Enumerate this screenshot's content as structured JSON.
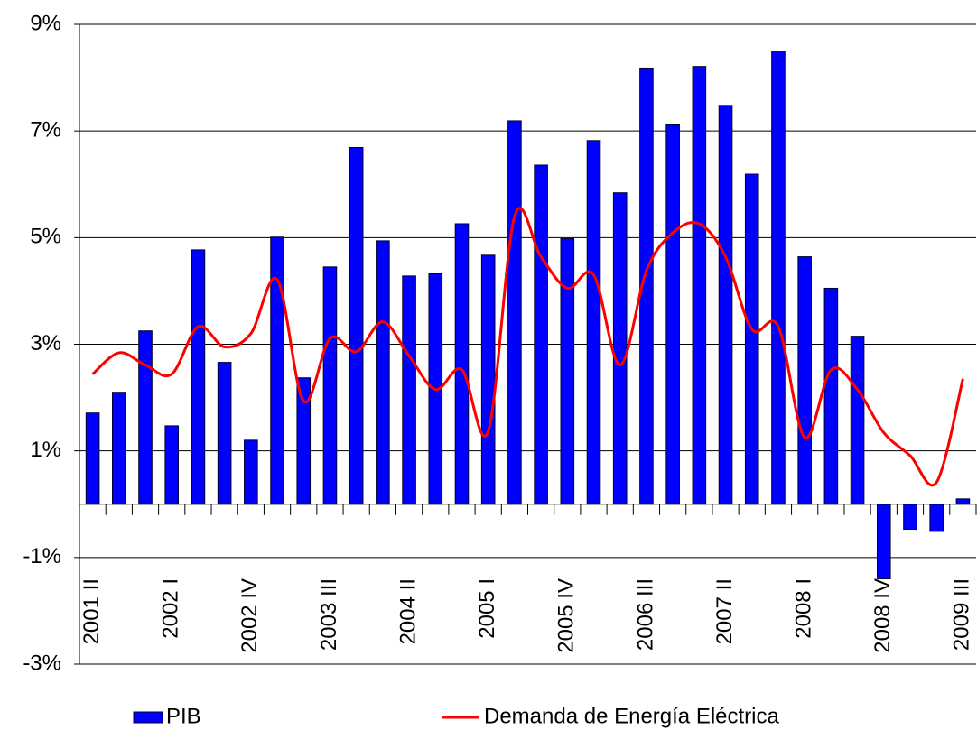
{
  "chart_data": {
    "type": "bar",
    "categories": [
      "2001 II",
      null,
      null,
      "2002 I",
      null,
      null,
      "2002 IV",
      null,
      null,
      "2003 III",
      null,
      null,
      "2004 II",
      null,
      null,
      "2005 I",
      null,
      null,
      "2005 IV",
      null,
      null,
      "2006 III",
      null,
      null,
      "2007 II",
      null,
      null,
      "2008 I",
      null,
      null,
      "2008 IV",
      null,
      null,
      "2009 III"
    ],
    "series": [
      {
        "name": "PIB",
        "type": "bar",
        "color": "#0000ff",
        "values": [
          1.71,
          2.1,
          3.25,
          1.47,
          4.77,
          2.66,
          1.2,
          5.01,
          2.37,
          4.45,
          6.69,
          4.94,
          4.28,
          4.32,
          5.26,
          4.67,
          7.19,
          6.36,
          4.98,
          6.82,
          5.84,
          8.18,
          7.13,
          8.21,
          7.48,
          6.19,
          8.5,
          4.64,
          4.05,
          3.15,
          -1.4,
          -0.47,
          -0.51,
          0.1
        ]
      },
      {
        "name": "Demanda de Energía Eléctrica",
        "type": "line",
        "color": "#ff0000",
        "values": [
          2.44,
          2.84,
          2.61,
          2.44,
          3.33,
          2.95,
          3.2,
          4.21,
          1.93,
          3.11,
          2.86,
          3.42,
          2.78,
          2.15,
          2.52,
          1.37,
          5.4,
          4.64,
          4.05,
          4.3,
          2.61,
          4.38,
          5.09,
          5.26,
          4.64,
          3.28,
          3.33,
          1.25,
          2.52,
          2.15,
          1.34,
          0.91,
          0.41,
          2.35
        ]
      }
    ],
    "ylim": [
      -3,
      9
    ],
    "yticks": [
      {
        "value": -3,
        "label": "-3%"
      },
      {
        "value": -1,
        "label": "-1%"
      },
      {
        "value": 1,
        "label": "1%"
      },
      {
        "value": 3,
        "label": "3%"
      },
      {
        "value": 5,
        "label": "5%"
      },
      {
        "value": 7,
        "label": "7%"
      },
      {
        "value": 9,
        "label": "9%"
      }
    ],
    "grid": true
  }
}
